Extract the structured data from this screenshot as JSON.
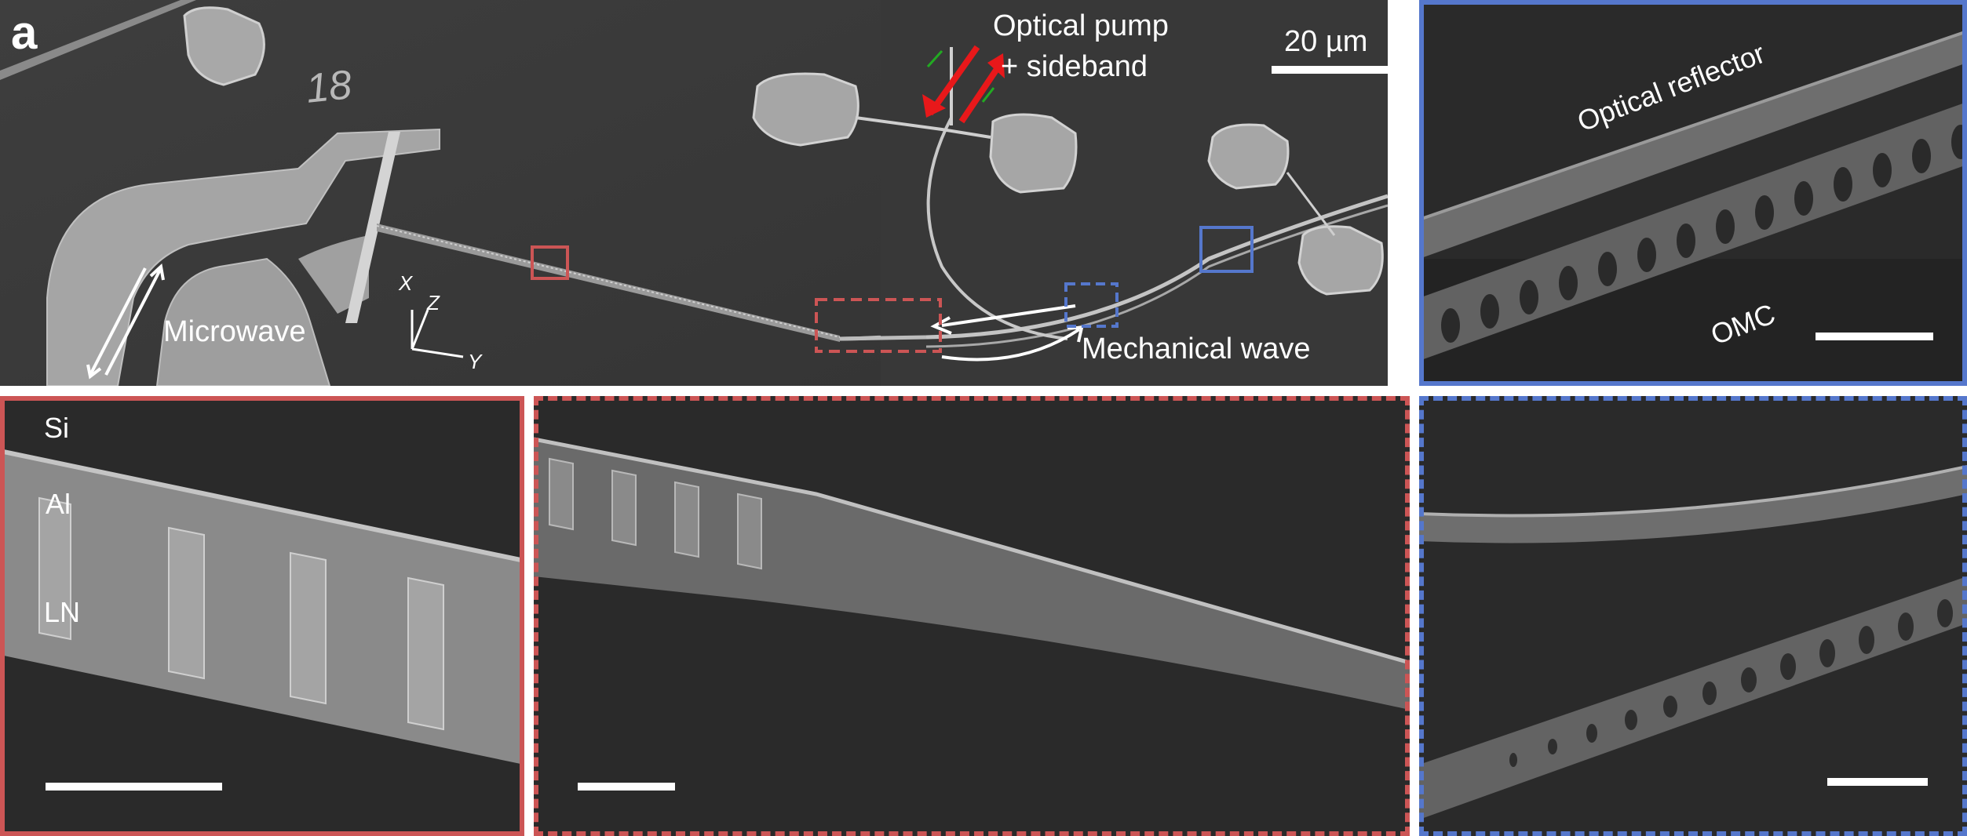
{
  "panel_label": "a",
  "chip_number": "18",
  "main": {
    "scale_bar_label": "20 µm",
    "optical_pump_line1": "Optical pump",
    "optical_pump_line2": "+ sideband",
    "microwave_label": "Microwave",
    "mechanical_wave_label": "Mechanical wave",
    "axis_x": "X",
    "axis_y": "Y",
    "axis_z": "Z"
  },
  "inset_blue_solid": {
    "optical_reflector_label": "Optical reflector",
    "omc_label": "OMC"
  },
  "inset_red_solid": {
    "si_label": "Si",
    "al_label": "Al",
    "ln_label": "LN"
  },
  "colors": {
    "red_frame": "#cc5555",
    "blue_frame": "#5577cc",
    "pump_arrow_red": "#e8181a",
    "sideband_arrow_green": "#22aa22"
  }
}
